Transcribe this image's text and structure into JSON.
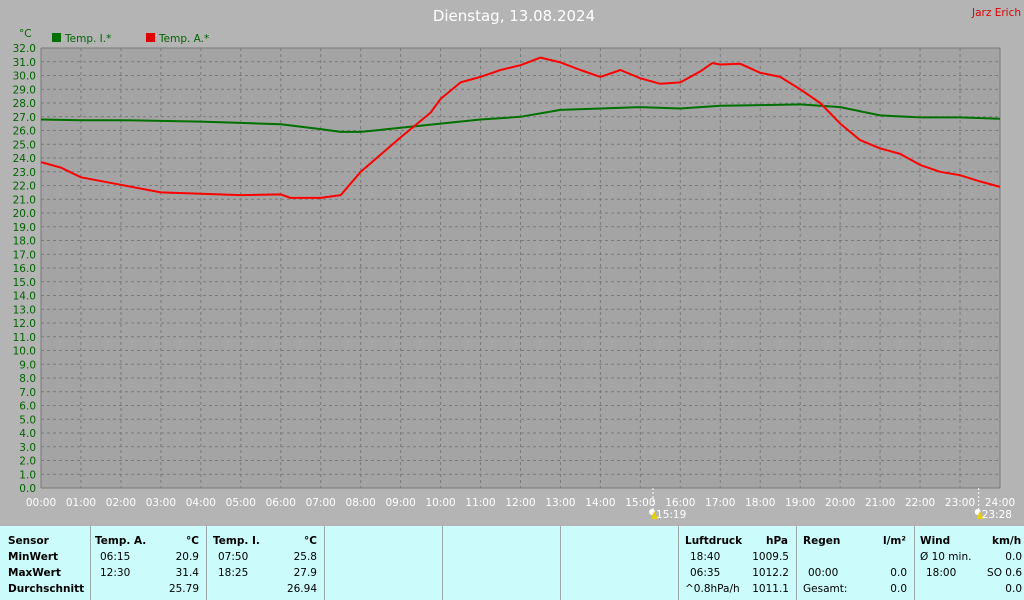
{
  "page": {
    "title": "Dienstag, 13.08.2024",
    "author": "Jarz Erich",
    "unit_label": "°C"
  },
  "colors": {
    "background": "#b4b4b4",
    "plot_background": "#a4a4a4",
    "grid": "#7a7a7a",
    "inside": "#007000",
    "outside": "#ff0000",
    "axis_text": "#006400",
    "time_text": "#ffffff",
    "panel": "#ccfbfb"
  },
  "events": [
    {
      "icon": "sun-moon-icon",
      "time": 15.317,
      "label": "15:19"
    },
    {
      "icon": "sun-moon-icon",
      "time": 23.467,
      "label": "23:28"
    }
  ],
  "chart_data": {
    "type": "line",
    "title": "Dienstag, 13.08.2024",
    "ylabel": "°C",
    "xlabel": "",
    "xlim": [
      0,
      24
    ],
    "ylim": [
      0,
      32
    ],
    "grid": true,
    "legend_position": "top-left",
    "x_ticks": [
      "00:00",
      "01:00",
      "02:00",
      "03:00",
      "04:00",
      "05:00",
      "06:00",
      "07:00",
      "08:00",
      "09:00",
      "10:00",
      "11:00",
      "12:00",
      "13:00",
      "14:00",
      "15:00",
      "16:00",
      "17:00",
      "18:00",
      "19:00",
      "20:00",
      "21:00",
      "22:00",
      "23:00",
      "24:00"
    ],
    "y_ticks": [
      "0.0",
      "1.0",
      "2.0",
      "3.0",
      "4.0",
      "5.0",
      "6.0",
      "7.0",
      "8.0",
      "9.0",
      "10.0",
      "11.0",
      "12.0",
      "13.0",
      "14.0",
      "15.0",
      "16.0",
      "17.0",
      "18.0",
      "19.0",
      "20.0",
      "21.0",
      "22.0",
      "23.0",
      "24.0",
      "25.0",
      "26.0",
      "27.0",
      "28.0",
      "29.0",
      "30.0",
      "31.0",
      "32.0"
    ],
    "series": [
      {
        "name": "Temp. I.*",
        "color": "#007000",
        "points": [
          [
            0,
            26.8
          ],
          [
            1,
            26.75
          ],
          [
            2,
            26.75
          ],
          [
            3,
            26.7
          ],
          [
            4,
            26.65
          ],
          [
            5,
            26.55
          ],
          [
            6,
            26.45
          ],
          [
            7,
            26.1
          ],
          [
            7.5,
            25.9
          ],
          [
            8,
            25.9
          ],
          [
            9,
            26.2
          ],
          [
            10,
            26.5
          ],
          [
            11,
            26.8
          ],
          [
            12,
            27.0
          ],
          [
            13,
            27.5
          ],
          [
            14,
            27.6
          ],
          [
            15,
            27.7
          ],
          [
            16,
            27.6
          ],
          [
            17,
            27.8
          ],
          [
            18,
            27.85
          ],
          [
            19,
            27.9
          ],
          [
            20,
            27.7
          ],
          [
            21,
            27.1
          ],
          [
            22,
            26.95
          ],
          [
            23,
            26.95
          ],
          [
            24,
            26.85
          ]
        ]
      },
      {
        "name": "Temp. A.*",
        "color": "#ff0000",
        "points": [
          [
            0,
            23.7
          ],
          [
            0.5,
            23.3
          ],
          [
            1,
            22.6
          ],
          [
            2,
            22.05
          ],
          [
            3,
            21.5
          ],
          [
            4,
            21.4
          ],
          [
            5,
            21.3
          ],
          [
            6,
            21.35
          ],
          [
            6.25,
            21.1
          ],
          [
            7,
            21.1
          ],
          [
            7.5,
            21.3
          ],
          [
            8,
            23.0
          ],
          [
            9,
            25.5
          ],
          [
            9.75,
            27.3
          ],
          [
            10,
            28.3
          ],
          [
            10.5,
            29.5
          ],
          [
            11,
            29.9
          ],
          [
            11.5,
            30.4
          ],
          [
            12,
            30.75
          ],
          [
            12.5,
            31.3
          ],
          [
            13,
            30.95
          ],
          [
            13.5,
            30.4
          ],
          [
            14,
            29.9
          ],
          [
            14.5,
            30.4
          ],
          [
            15,
            29.8
          ],
          [
            15.5,
            29.4
          ],
          [
            16,
            29.5
          ],
          [
            16.5,
            30.3
          ],
          [
            16.8,
            30.9
          ],
          [
            17,
            30.8
          ],
          [
            17.5,
            30.85
          ],
          [
            18,
            30.2
          ],
          [
            18.5,
            29.9
          ],
          [
            19,
            29.0
          ],
          [
            19.5,
            28.0
          ],
          [
            20,
            26.5
          ],
          [
            20.5,
            25.3
          ],
          [
            21,
            24.7
          ],
          [
            21.5,
            24.3
          ],
          [
            22,
            23.5
          ],
          [
            22.5,
            23.0
          ],
          [
            23,
            22.75
          ],
          [
            23.5,
            22.3
          ],
          [
            24,
            21.9
          ]
        ]
      }
    ]
  },
  "stats": {
    "sensor": {
      "header": "Sensor",
      "min": "MinWert",
      "max": "MaxWert",
      "avg": "Durchschnitt"
    },
    "temp_a": {
      "header": "Temp. A.",
      "unit": "°C",
      "min_time": "06:15",
      "min_val": "20.9",
      "max_time": "12:30",
      "max_val": "31.4",
      "avg": "25.79"
    },
    "temp_i": {
      "header": "Temp. I.",
      "unit": "°C",
      "min_time": "07:50",
      "min_val": "25.8",
      "max_time": "18:25",
      "max_val": "27.9",
      "avg": "26.94"
    },
    "pressure": {
      "header": "Luftdruck",
      "unit": "hPa",
      "r1_time": "18:40",
      "r1_val": "1009.5",
      "r2_time": "06:35",
      "r2_val": "1012.2",
      "r3_label": "^0.8hPa/h",
      "r3_val": "1011.1"
    },
    "rain": {
      "header": "Regen",
      "unit": "l/m²",
      "r2_time": "00:00",
      "r2_val": "0.0",
      "r3_label": "Gesamt:",
      "r3_val": "0.0"
    },
    "wind": {
      "header": "Wind",
      "unit": "km/h",
      "r1_label": "Ø 10 min.",
      "r1_val": "0.0",
      "r2_time": "18:00",
      "r2_val": "SO 0.6",
      "r3_val": "0.0"
    }
  }
}
